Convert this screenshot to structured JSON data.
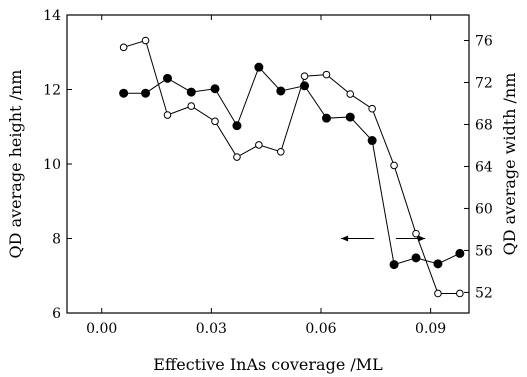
{
  "chart_data": {
    "type": "line",
    "xlabel": "Effective InAs coverage /ML",
    "ylabel_left": "QD average height /nm",
    "ylabel_right": "QD average width /nm",
    "xlim": [
      -0.0095,
      0.1005
    ],
    "ylim_left": [
      6,
      14
    ],
    "ylim_right": [
      50.04,
      78.43
    ],
    "x_ticks": [
      0.0,
      0.03,
      0.06,
      0.09
    ],
    "x_tick_labels": [
      "0.00",
      "0.03",
      "0.06",
      "0.09"
    ],
    "y_left_ticks": [
      6,
      8,
      10,
      12,
      14
    ],
    "y_left_tick_labels": [
      "6",
      "8",
      "10",
      "12",
      "14"
    ],
    "y_right_ticks": [
      52,
      56,
      60,
      64,
      68,
      72,
      76
    ],
    "y_right_tick_labels": [
      "52",
      "56",
      "60",
      "64",
      "68",
      "72",
      "76"
    ],
    "grid": false,
    "series": [
      {
        "axis": "left",
        "marker": "filled-circle",
        "x": [
          0.006,
          0.012,
          0.018,
          0.0245,
          0.031,
          0.037,
          0.043,
          0.049,
          0.0555,
          0.0615,
          0.068,
          0.074,
          0.08,
          0.086,
          0.092,
          0.098
        ],
        "y": [
          11.9,
          11.9,
          12.3,
          11.93,
          12.02,
          11.03,
          12.6,
          11.96,
          12.1,
          11.23,
          11.26,
          10.63,
          7.3,
          7.48,
          7.32,
          7.6
        ]
      },
      {
        "axis": "right",
        "marker": "open-circle",
        "x": [
          0.006,
          0.012,
          0.018,
          0.0245,
          0.031,
          0.037,
          0.043,
          0.049,
          0.0555,
          0.0615,
          0.068,
          0.074,
          0.08,
          0.086,
          0.092,
          0.098
        ],
        "y": [
          75.35,
          76.0,
          68.9,
          69.75,
          68.3,
          64.9,
          66.05,
          65.4,
          72.6,
          72.75,
          70.9,
          69.5,
          64.1,
          57.6,
          51.9,
          51.9
        ]
      }
    ],
    "annotations": [
      {
        "type": "arrow",
        "points_to": "left-axis",
        "x_from": 0.0745,
        "x_to": 0.0655,
        "y_left": 8.0
      },
      {
        "type": "arrow",
        "points_to": "right-axis",
        "x_from": 0.0805,
        "x_to": 0.0885,
        "y_left": 8.0
      }
    ]
  }
}
